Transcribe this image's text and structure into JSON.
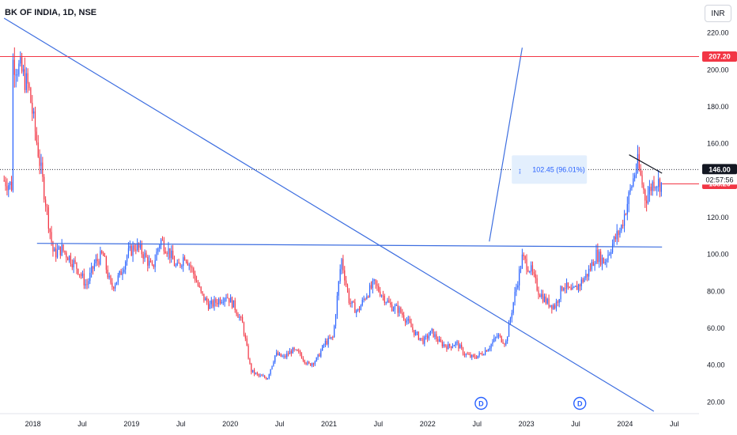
{
  "header": {
    "title": "BK OF INDIA, 1D, NSE",
    "currency": "INR"
  },
  "colors": {
    "up": "#2962ff",
    "down": "#f23645",
    "trendline": "#3d6ee0",
    "hline_red": "#f23645",
    "axis_text": "#131722"
  },
  "chart_data": {
    "type": "candlestick",
    "title": "BK OF INDIA, 1D, NSE",
    "currency": "INR",
    "yticks": [
      "220.00",
      "200.00",
      "180.00",
      "160.00",
      "140.00",
      "120.00",
      "100.00",
      "80.00",
      "60.00",
      "40.00",
      "20.00"
    ],
    "ytick_values": [
      220,
      200,
      180,
      160,
      140,
      120,
      100,
      80,
      60,
      40,
      20
    ],
    "xticks": [
      "2018",
      "Jul",
      "2019",
      "Jul",
      "2020",
      "Jul",
      "2021",
      "Jul",
      "2022",
      "Jul",
      "2023",
      "Jul",
      "2024",
      "Jul"
    ],
    "xtick_dates": [
      "2018-01",
      "2018-07",
      "2019-01",
      "2019-07",
      "2020-01",
      "2020-07",
      "2021-01",
      "2021-07",
      "2022-01",
      "2022-07",
      "2023-01",
      "2023-07",
      "2024-01",
      "2024-07"
    ],
    "x_range": [
      "2017-09",
      "2024-10"
    ],
    "y_range": [
      15,
      225
    ],
    "price_path": [
      [
        "2017-09",
        140
      ],
      [
        "2017-10",
        137
      ],
      [
        "2017-10",
        205
      ],
      [
        "2017-11",
        200
      ],
      [
        "2017-12",
        190
      ],
      [
        "2018-01",
        160
      ],
      [
        "2018-02",
        130
      ],
      [
        "2018-03",
        100
      ],
      [
        "2018-04",
        103
      ],
      [
        "2018-05",
        98
      ],
      [
        "2018-06",
        92
      ],
      [
        "2018-07",
        83
      ],
      [
        "2018-08",
        95
      ],
      [
        "2018-09",
        100
      ],
      [
        "2018-10",
        82
      ],
      [
        "2018-11",
        88
      ],
      [
        "2018-12",
        100
      ],
      [
        "2019-01",
        105
      ],
      [
        "2019-02",
        100
      ],
      [
        "2019-03",
        92
      ],
      [
        "2019-04",
        108
      ],
      [
        "2019-05",
        102
      ],
      [
        "2019-06",
        92
      ],
      [
        "2019-07",
        100
      ],
      [
        "2019-08",
        90
      ],
      [
        "2019-09",
        78
      ],
      [
        "2019-10",
        72
      ],
      [
        "2019-11",
        75
      ],
      [
        "2019-12",
        78
      ],
      [
        "2020-01",
        72
      ],
      [
        "2020-02",
        62
      ],
      [
        "2020-03",
        37
      ],
      [
        "2020-04",
        34
      ],
      [
        "2020-05",
        33
      ],
      [
        "2020-06",
        46
      ],
      [
        "2020-07",
        44
      ],
      [
        "2020-08",
        48
      ],
      [
        "2020-09",
        46
      ],
      [
        "2020-10",
        40
      ],
      [
        "2020-11",
        43
      ],
      [
        "2020-12",
        52
      ],
      [
        "2021-01",
        55
      ],
      [
        "2021-02",
        98
      ],
      [
        "2021-03",
        74
      ],
      [
        "2021-04",
        69
      ],
      [
        "2021-05",
        78
      ],
      [
        "2021-06",
        84
      ],
      [
        "2021-07",
        78
      ],
      [
        "2021-08",
        72
      ],
      [
        "2021-09",
        70
      ],
      [
        "2021-10",
        64
      ],
      [
        "2021-11",
        57
      ],
      [
        "2021-12",
        53
      ],
      [
        "2022-01",
        58
      ],
      [
        "2022-02",
        52
      ],
      [
        "2022-03",
        50
      ],
      [
        "2022-04",
        52
      ],
      [
        "2022-05",
        46
      ],
      [
        "2022-06",
        44
      ],
      [
        "2022-07",
        46
      ],
      [
        "2022-08",
        50
      ],
      [
        "2022-09",
        56
      ],
      [
        "2022-10",
        52
      ],
      [
        "2022-11",
        76
      ],
      [
        "2022-12",
        98
      ],
      [
        "2023-01",
        92
      ],
      [
        "2023-02",
        80
      ],
      [
        "2023-03",
        74
      ],
      [
        "2023-04",
        72
      ],
      [
        "2023-05",
        84
      ],
      [
        "2023-06",
        79
      ],
      [
        "2023-07",
        84
      ],
      [
        "2023-08",
        90
      ],
      [
        "2023-09",
        100
      ],
      [
        "2023-10",
        96
      ],
      [
        "2023-11",
        106
      ],
      [
        "2023-12",
        114
      ],
      [
        "2024-01",
        132
      ],
      [
        "2024-02",
        150
      ],
      [
        "2024-03",
        130
      ],
      [
        "2024-04",
        140
      ],
      [
        "2024-05",
        138
      ]
    ],
    "horizontal_lines": [
      {
        "price": 207.2,
        "label": "207.20",
        "color": "#f23645"
      },
      {
        "price": 138.2,
        "label": "138.20",
        "color": "#f23645"
      }
    ],
    "last_price": {
      "value": 146.0,
      "label": "146.00",
      "countdown": "02:57:56"
    },
    "trendlines": [
      {
        "from": [
          "2017-09",
          228
        ],
        "to": [
          "2024-04",
          15
        ]
      },
      {
        "from": [
          "2018-01",
          106
        ],
        "to": [
          "2024-05",
          104
        ]
      },
      {
        "from": [
          "2022-08",
          107
        ],
        "to": [
          "2022-12",
          212
        ]
      },
      {
        "from": [
          "2024-01",
          154
        ],
        "to": [
          "2024-05",
          144
        ]
      }
    ],
    "measure": {
      "label": "102.45 (96.01%)",
      "start_price": 106.7,
      "end_price": 209.15
    },
    "dividends": [
      {
        "date": "2022-07",
        "label": "D"
      },
      {
        "date": "2023-07",
        "label": "D"
      }
    ],
    "grid": false,
    "legend": "none"
  }
}
